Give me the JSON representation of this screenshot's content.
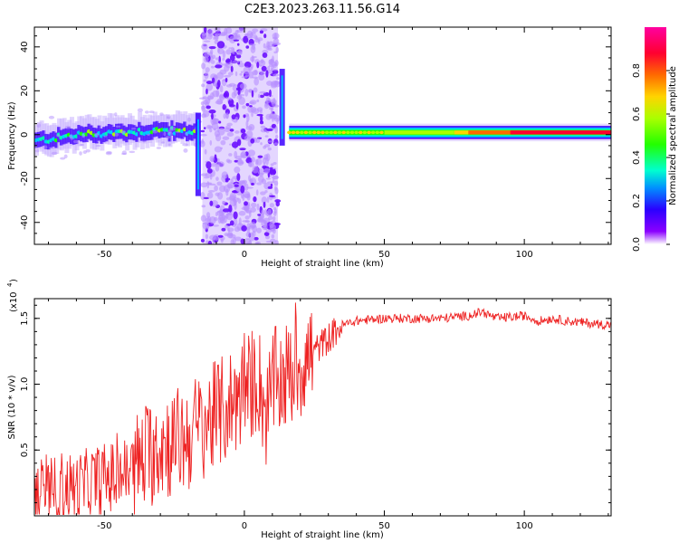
{
  "figure": {
    "title": "C2E3.2023.263.11.56.G14"
  },
  "chart_data": [
    {
      "type": "heatmap",
      "title": "C2E3.2023.263.11.56.G14",
      "xlabel": "Height of straight line (km)",
      "ylabel": "Frequency (Hz)",
      "xlim": [
        -75,
        131
      ],
      "ylim": [
        -50,
        49
      ],
      "xticks": [
        -50,
        0,
        50,
        100
      ],
      "yticks": [
        -40,
        -20,
        0,
        20,
        40
      ],
      "colorbar": {
        "label": "Normalized spectral amplitude",
        "ticks": [
          "0.0",
          "0.2",
          "0.4",
          "0.6",
          "0.8"
        ],
        "range": [
          0,
          1
        ],
        "colormap": [
          "#ffffff",
          "#7a00ff",
          "#2a00ff",
          "#00a6ff",
          "#00ffd0",
          "#22ff00",
          "#aaff00",
          "#ffd400",
          "#ff6a00",
          "#ff0030",
          "#ff00a0"
        ]
      },
      "ridge_frequency_hz": [
        {
          "x": -75,
          "y": -3
        },
        {
          "x": -60,
          "y": 0
        },
        {
          "x": -45,
          "y": 1
        },
        {
          "x": -30,
          "y": 2
        },
        {
          "x": -20,
          "y": 1
        },
        {
          "x": -17,
          "y": 3
        },
        {
          "x": 18,
          "y": 0
        },
        {
          "x": 60,
          "y": 1
        },
        {
          "x": 100,
          "y": 1
        },
        {
          "x": 131,
          "y": 2
        }
      ],
      "noise_band_km": [
        -15,
        12
      ],
      "grid": false
    },
    {
      "type": "line",
      "xlabel": "Height of straight line (km)",
      "ylabel": "SNR (10 * v/v)",
      "multiplier": "(x10",
      "multiplier_exp": "4",
      "xlim": [
        -75,
        131
      ],
      "ylim": [
        0,
        1.65
      ],
      "xticks": [
        -50,
        0,
        50,
        100
      ],
      "yticks": [
        0.5,
        1.0,
        1.5
      ],
      "ytick_labels": [
        "0.5",
        "1.0",
        "1.5"
      ],
      "color": "#ee2222",
      "series": [
        {
          "x": [
            -75,
            -70,
            -65,
            -60,
            -55,
            -50,
            -45,
            -40,
            -35,
            -30,
            -25,
            -20,
            -15,
            -10,
            -5,
            0,
            5,
            8,
            10,
            15,
            20,
            25,
            30,
            35,
            40,
            50,
            60,
            70,
            80,
            85,
            90,
            100,
            105,
            110,
            115,
            120,
            125,
            131
          ],
          "values": [
            0.18,
            0.15,
            0.22,
            0.2,
            0.25,
            0.28,
            0.3,
            0.35,
            0.45,
            0.55,
            0.55,
            0.6,
            0.7,
            0.75,
            0.85,
            0.95,
            1.05,
            0.75,
            1.0,
            1.05,
            1.15,
            1.25,
            1.35,
            1.45,
            1.48,
            1.5,
            1.5,
            1.5,
            1.52,
            1.55,
            1.5,
            1.52,
            1.48,
            1.5,
            1.48,
            1.47,
            1.46,
            1.45
          ]
        }
      ],
      "grid": false
    }
  ]
}
